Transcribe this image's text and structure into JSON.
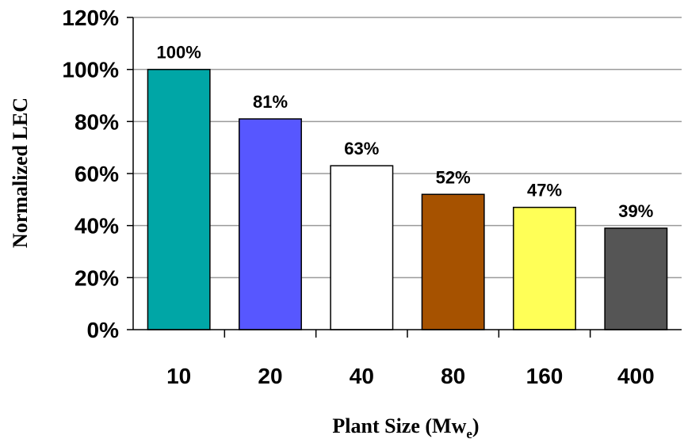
{
  "chart_data": {
    "type": "bar",
    "categories": [
      "10",
      "20",
      "40",
      "80",
      "160",
      "400"
    ],
    "values": [
      100,
      81,
      63,
      52,
      47,
      39
    ],
    "data_labels": [
      "100%",
      "81%",
      "63%",
      "52%",
      "47%",
      "39%"
    ],
    "bar_colors": [
      "#00A6A6",
      "#5757FF",
      "#FFFFFF",
      "#A65200",
      "#FFFF57",
      "#555555"
    ],
    "ylabel": "Normalized LEC",
    "xlabel_main": "Plant Size (Mw",
    "xlabel_sub": "e",
    "xlabel_end": ")",
    "ylim": [
      0,
      120
    ],
    "yticks": [
      0,
      20,
      40,
      60,
      80,
      100,
      120
    ],
    "ytick_labels": [
      "0%",
      "20%",
      "40%",
      "60%",
      "80%",
      "100%",
      "120%"
    ],
    "grid": true
  }
}
